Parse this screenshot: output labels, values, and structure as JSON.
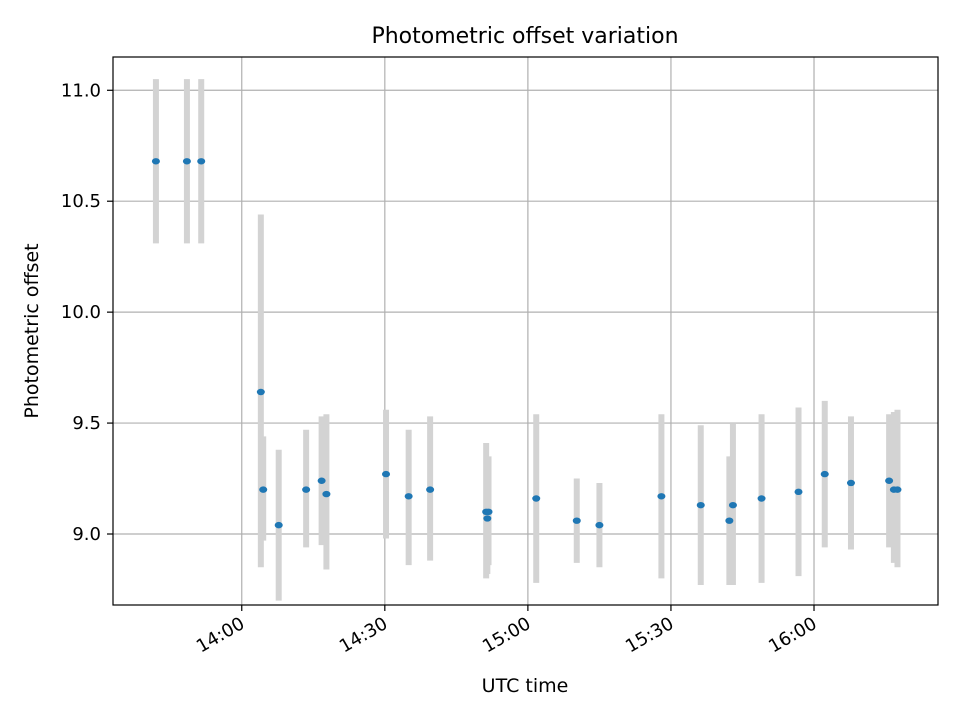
{
  "chart_data": {
    "type": "scatter",
    "title": "Photometric offset variation",
    "xlabel": "UTC time",
    "ylabel": "Photometric offset",
    "x_ticks": [
      "14:00",
      "14:30",
      "15:00",
      "15:30",
      "16:00"
    ],
    "y_ticks": [
      "9.0",
      "9.5",
      "10.0",
      "10.5",
      "11.0"
    ],
    "grid": true,
    "colors": {
      "point": "#1f77b4",
      "errorbar": "#d3d3d3",
      "grid": "#b0b0b0"
    },
    "x_range": [
      "13:33",
      "16:26"
    ],
    "y_range": [
      8.68,
      11.15
    ],
    "series": [
      {
        "points": [
          {
            "t": "13:42:00",
            "y": 10.68,
            "lo": 10.31,
            "hi": 11.05
          },
          {
            "t": "13:48:30",
            "y": 10.68,
            "lo": 10.31,
            "hi": 11.05
          },
          {
            "t": "13:51:30",
            "y": 10.68,
            "lo": 10.31,
            "hi": 11.05
          },
          {
            "t": "14:04:00",
            "y": 9.64,
            "lo": 8.85,
            "hi": 10.44
          },
          {
            "t": "14:04:30",
            "y": 9.2,
            "lo": 8.97,
            "hi": 9.44
          },
          {
            "t": "14:07:45",
            "y": 9.04,
            "lo": 8.7,
            "hi": 9.38
          },
          {
            "t": "14:13:30",
            "y": 9.2,
            "lo": 8.94,
            "hi": 9.47
          },
          {
            "t": "14:16:45",
            "y": 9.24,
            "lo": 8.95,
            "hi": 9.53
          },
          {
            "t": "14:17:45",
            "y": 9.18,
            "lo": 8.84,
            "hi": 9.54
          },
          {
            "t": "14:30:15",
            "y": 9.27,
            "lo": 8.98,
            "hi": 9.56
          },
          {
            "t": "14:35:00",
            "y": 9.17,
            "lo": 8.86,
            "hi": 9.47
          },
          {
            "t": "14:39:30",
            "y": 9.2,
            "lo": 8.88,
            "hi": 9.53
          },
          {
            "t": "14:51:15",
            "y": 9.1,
            "lo": 8.8,
            "hi": 9.41
          },
          {
            "t": "14:51:30",
            "y": 9.07,
            "lo": 8.82,
            "hi": 9.34
          },
          {
            "t": "14:51:45",
            "y": 9.1,
            "lo": 8.86,
            "hi": 9.35
          },
          {
            "t": "15:01:45",
            "y": 9.16,
            "lo": 8.78,
            "hi": 9.54
          },
          {
            "t": "15:10:15",
            "y": 9.06,
            "lo": 8.87,
            "hi": 9.25
          },
          {
            "t": "15:15:00",
            "y": 9.04,
            "lo": 8.85,
            "hi": 9.23
          },
          {
            "t": "15:28:00",
            "y": 9.17,
            "lo": 8.8,
            "hi": 9.54
          },
          {
            "t": "15:36:15",
            "y": 9.13,
            "lo": 8.77,
            "hi": 9.49
          },
          {
            "t": "15:42:15",
            "y": 9.06,
            "lo": 8.77,
            "hi": 9.35
          },
          {
            "t": "15:43:00",
            "y": 9.13,
            "lo": 8.77,
            "hi": 9.5
          },
          {
            "t": "15:49:00",
            "y": 9.16,
            "lo": 8.78,
            "hi": 9.54
          },
          {
            "t": "15:56:45",
            "y": 9.19,
            "lo": 8.81,
            "hi": 9.57
          },
          {
            "t": "16:02:15",
            "y": 9.27,
            "lo": 8.94,
            "hi": 9.6
          },
          {
            "t": "16:07:45",
            "y": 9.23,
            "lo": 8.93,
            "hi": 9.53
          },
          {
            "t": "16:15:45",
            "y": 9.24,
            "lo": 8.94,
            "hi": 9.54
          },
          {
            "t": "16:16:45",
            "y": 9.2,
            "lo": 8.87,
            "hi": 9.55
          },
          {
            "t": "16:17:30",
            "y": 9.2,
            "lo": 8.85,
            "hi": 9.56
          }
        ]
      }
    ]
  }
}
